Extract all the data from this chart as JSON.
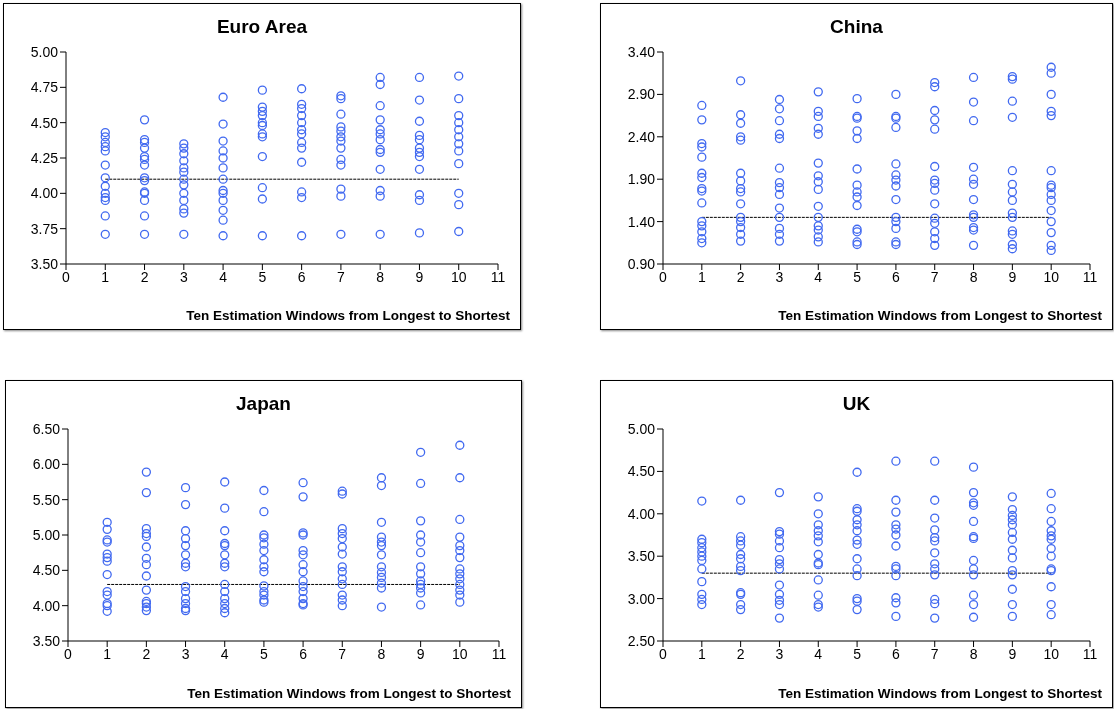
{
  "chart_data": [
    {
      "type": "scatter",
      "title": "Euro Area",
      "xlabel": "Ten Estimation Windows from Longest to Shortest",
      "xlim": [
        0,
        11
      ],
      "xticks": [
        0,
        1,
        2,
        3,
        4,
        5,
        6,
        7,
        8,
        9,
        10,
        11
      ],
      "ylim": [
        3.5,
        5
      ],
      "yticks": [
        {
          "value": 3.5,
          "label": "3.50"
        },
        {
          "value": 3.75,
          "label": "3.75"
        },
        {
          "value": 4,
          "label": "4.00"
        },
        {
          "value": 4.25,
          "label": "4.25"
        },
        {
          "value": 4.5,
          "label": "4.50"
        },
        {
          "value": 4.75,
          "label": "4.75"
        },
        {
          "value": 5,
          "label": "5.00"
        }
      ],
      "grid": false,
      "legend": false,
      "marker": "circle",
      "series": [
        {
          "color": "#4169f0",
          "x": [
            1,
            1,
            1,
            1,
            1,
            1,
            1,
            1,
            1,
            1,
            1,
            1,
            1
          ],
          "values": [
            4.43,
            4.4,
            4.36,
            4.33,
            4.3,
            4.2,
            4.11,
            4.05,
            4.0,
            3.97,
            3.95,
            3.84,
            3.71
          ]
        },
        {
          "color": "#4169f0",
          "x": [
            2,
            2,
            2,
            2,
            2,
            2,
            2,
            2,
            2,
            2,
            2,
            2,
            2,
            2
          ],
          "values": [
            4.52,
            4.38,
            4.36,
            4.32,
            4.26,
            4.24,
            4.2,
            4.11,
            4.09,
            4.01,
            4.0,
            3.95,
            3.84,
            3.71
          ]
        },
        {
          "color": "#4169f0",
          "x": [
            3,
            3,
            3,
            3,
            3,
            3,
            3,
            3,
            3,
            3,
            3,
            3,
            3
          ],
          "values": [
            4.35,
            4.32,
            4.28,
            4.23,
            4.18,
            4.15,
            4.1,
            4.06,
            4.0,
            3.95,
            3.89,
            3.86,
            3.71
          ]
        },
        {
          "color": "#4169f0",
          "x": [
            4,
            4,
            4,
            4,
            4,
            4,
            4,
            4,
            4,
            4,
            4,
            4,
            4
          ],
          "values": [
            4.68,
            4.49,
            4.37,
            4.3,
            4.25,
            4.18,
            4.1,
            4.02,
            4.0,
            3.95,
            3.88,
            3.81,
            3.7
          ]
        },
        {
          "color": "#4169f0",
          "x": [
            5,
            5,
            5,
            5,
            5,
            5,
            5,
            5,
            5,
            5,
            5,
            5
          ],
          "values": [
            4.73,
            4.61,
            4.58,
            4.55,
            4.5,
            4.48,
            4.42,
            4.4,
            4.26,
            4.04,
            3.96,
            3.7
          ]
        },
        {
          "color": "#4169f0",
          "x": [
            6,
            6,
            6,
            6,
            6,
            6,
            6,
            6,
            6,
            6,
            6,
            6,
            6
          ],
          "values": [
            4.74,
            4.63,
            4.6,
            4.55,
            4.5,
            4.45,
            4.42,
            4.36,
            4.32,
            4.22,
            4.01,
            3.97,
            3.7
          ]
        },
        {
          "color": "#4169f0",
          "x": [
            7,
            7,
            7,
            7,
            7,
            7,
            7,
            7,
            7,
            7,
            7,
            7,
            7
          ],
          "values": [
            4.69,
            4.67,
            4.56,
            4.47,
            4.44,
            4.4,
            4.37,
            4.32,
            4.24,
            4.2,
            4.03,
            3.98,
            3.71
          ]
        },
        {
          "color": "#4169f0",
          "x": [
            8,
            8,
            8,
            8,
            8,
            8,
            8,
            8,
            8,
            8,
            8,
            8,
            8
          ],
          "values": [
            4.82,
            4.77,
            4.62,
            4.52,
            4.45,
            4.42,
            4.38,
            4.31,
            4.29,
            4.17,
            4.02,
            3.98,
            3.71
          ]
        },
        {
          "color": "#4169f0",
          "x": [
            9,
            9,
            9,
            9,
            9,
            9,
            9,
            9,
            9,
            9,
            9,
            9
          ],
          "values": [
            4.82,
            4.66,
            4.51,
            4.41,
            4.38,
            4.32,
            4.29,
            4.26,
            4.17,
            3.99,
            3.95,
            3.72
          ]
        },
        {
          "color": "#4169f0",
          "x": [
            10,
            10,
            10,
            10,
            10,
            10,
            10,
            10,
            10,
            10,
            10,
            10
          ],
          "values": [
            4.83,
            4.67,
            4.55,
            4.5,
            4.45,
            4.4,
            4.35,
            4.3,
            4.21,
            4.0,
            3.92,
            3.73
          ]
        },
        {
          "type": "line",
          "color": "#000000",
          "line_style": "dashed",
          "marker": "none",
          "x": [
            1,
            10
          ],
          "values": [
            4.1,
            4.1
          ]
        }
      ]
    },
    {
      "type": "scatter",
      "title": "China",
      "xlabel": "Ten Estimation Windows from Longest to Shortest",
      "xlim": [
        0,
        11
      ],
      "xticks": [
        0,
        1,
        2,
        3,
        4,
        5,
        6,
        7,
        8,
        9,
        10,
        11
      ],
      "ylim": [
        0.9,
        3.4
      ],
      "yticks": [
        {
          "value": 0.9,
          "label": "0.90"
        },
        {
          "value": 1.4,
          "label": "1.40"
        },
        {
          "value": 1.9,
          "label": "1.90"
        },
        {
          "value": 2.4,
          "label": "2.40"
        },
        {
          "value": 2.9,
          "label": "2.90"
        },
        {
          "value": 3.4,
          "label": "3.40"
        }
      ],
      "grid": false,
      "legend": false,
      "marker": "circle",
      "series": [
        {
          "color": "#4169f0",
          "x": [
            1,
            1,
            1,
            1,
            1,
            1,
            1,
            1,
            1,
            1,
            1,
            1,
            1,
            1,
            1
          ],
          "values": [
            2.77,
            2.6,
            2.32,
            2.28,
            2.16,
            1.97,
            1.92,
            1.79,
            1.76,
            1.62,
            1.4,
            1.35,
            1.28,
            1.2,
            1.15
          ]
        },
        {
          "color": "#4169f0",
          "x": [
            2,
            2,
            2,
            2,
            2,
            2,
            2,
            2,
            2,
            2,
            2,
            2,
            2,
            2,
            2
          ],
          "values": [
            3.06,
            2.66,
            2.56,
            2.4,
            2.36,
            1.97,
            1.88,
            1.79,
            1.75,
            1.61,
            1.45,
            1.4,
            1.33,
            1.25,
            1.17
          ]
        },
        {
          "color": "#4169f0",
          "x": [
            3,
            3,
            3,
            3,
            3,
            3,
            3,
            3,
            3,
            3,
            3,
            3,
            3,
            3
          ],
          "values": [
            2.84,
            2.73,
            2.59,
            2.43,
            2.38,
            2.03,
            1.86,
            1.8,
            1.72,
            1.56,
            1.45,
            1.32,
            1.25,
            1.17
          ]
        },
        {
          "color": "#4169f0",
          "x": [
            4,
            4,
            4,
            4,
            4,
            4,
            4,
            4,
            4,
            4,
            4,
            4,
            4,
            4,
            4
          ],
          "values": [
            2.93,
            2.7,
            2.64,
            2.5,
            2.43,
            2.09,
            1.94,
            1.87,
            1.78,
            1.58,
            1.45,
            1.35,
            1.3,
            1.22,
            1.16
          ]
        },
        {
          "color": "#4169f0",
          "x": [
            5,
            5,
            5,
            5,
            5,
            5,
            5,
            5,
            5,
            5,
            5,
            5,
            5,
            5
          ],
          "values": [
            2.85,
            2.64,
            2.62,
            2.47,
            2.38,
            2.02,
            1.83,
            1.75,
            1.69,
            1.59,
            1.31,
            1.28,
            1.16,
            1.13
          ]
        },
        {
          "color": "#4169f0",
          "x": [
            6,
            6,
            6,
            6,
            6,
            6,
            6,
            6,
            6,
            6,
            6,
            6,
            6,
            6
          ],
          "values": [
            2.9,
            2.64,
            2.62,
            2.51,
            2.08,
            1.95,
            1.89,
            1.82,
            1.66,
            1.45,
            1.4,
            1.32,
            1.16,
            1.13
          ]
        },
        {
          "color": "#4169f0",
          "x": [
            7,
            7,
            7,
            7,
            7,
            7,
            7,
            7,
            7,
            7,
            7,
            7,
            7,
            7,
            7
          ],
          "values": [
            3.04,
            2.99,
            2.71,
            2.6,
            2.49,
            2.05,
            1.89,
            1.85,
            1.77,
            1.61,
            1.44,
            1.38,
            1.28,
            1.2,
            1.12
          ]
        },
        {
          "color": "#4169f0",
          "x": [
            8,
            8,
            8,
            8,
            8,
            8,
            8,
            8,
            8,
            8,
            8,
            8
          ],
          "values": [
            3.1,
            2.81,
            2.59,
            2.04,
            1.9,
            1.84,
            1.66,
            1.48,
            1.45,
            1.33,
            1.3,
            1.12
          ]
        },
        {
          "color": "#4169f0",
          "x": [
            9,
            9,
            9,
            9,
            9,
            9,
            9,
            9,
            9,
            9,
            9,
            9,
            9,
            9
          ],
          "values": [
            3.11,
            3.08,
            2.82,
            2.63,
            2.0,
            1.84,
            1.75,
            1.65,
            1.5,
            1.45,
            1.29,
            1.25,
            1.13,
            1.08
          ]
        },
        {
          "color": "#4169f0",
          "x": [
            10,
            10,
            10,
            10,
            10,
            10,
            10,
            10,
            10,
            10,
            10,
            10,
            10,
            10,
            10
          ],
          "values": [
            3.22,
            3.15,
            2.9,
            2.7,
            2.65,
            2.0,
            1.83,
            1.8,
            1.72,
            1.65,
            1.53,
            1.4,
            1.27,
            1.12,
            1.06
          ]
        },
        {
          "type": "line",
          "color": "#000000",
          "line_style": "dashed",
          "marker": "none",
          "x": [
            1,
            10
          ],
          "values": [
            1.45,
            1.45
          ]
        }
      ]
    },
    {
      "type": "scatter",
      "title": "Japan",
      "xlabel": "Ten Estimation Windows from Longest to Shortest",
      "xlim": [
        0,
        11
      ],
      "xticks": [
        0,
        1,
        2,
        3,
        4,
        5,
        6,
        7,
        8,
        9,
        10,
        11
      ],
      "ylim": [
        3.5,
        6.5
      ],
      "yticks": [
        {
          "value": 3.5,
          "label": "3.50"
        },
        {
          "value": 4,
          "label": "4.00"
        },
        {
          "value": 4.5,
          "label": "4.50"
        },
        {
          "value": 5,
          "label": "5.00"
        },
        {
          "value": 5.5,
          "label": "5.50"
        },
        {
          "value": 6,
          "label": "6.00"
        },
        {
          "value": 6.5,
          "label": "6.50"
        }
      ],
      "grid": false,
      "legend": false,
      "marker": "circle",
      "series": [
        {
          "color": "#4169f0",
          "x": [
            1,
            1,
            1,
            1,
            1,
            1,
            1,
            1,
            1,
            1,
            1,
            1,
            1
          ],
          "values": [
            5.18,
            5.08,
            4.93,
            4.9,
            4.73,
            4.68,
            4.63,
            4.44,
            4.2,
            4.15,
            4.03,
            4.0,
            3.92
          ]
        },
        {
          "color": "#4169f0",
          "x": [
            2,
            2,
            2,
            2,
            2,
            2,
            2,
            2,
            2,
            2,
            2,
            2,
            2,
            2
          ],
          "values": [
            5.89,
            5.6,
            5.09,
            5.02,
            4.98,
            4.83,
            4.67,
            4.58,
            4.42,
            4.22,
            4.06,
            4.03,
            3.98,
            3.93
          ]
        },
        {
          "color": "#4169f0",
          "x": [
            3,
            3,
            3,
            3,
            3,
            3,
            3,
            3,
            3,
            3,
            3,
            3,
            3,
            3
          ],
          "values": [
            5.67,
            5.43,
            5.06,
            4.95,
            4.85,
            4.72,
            4.6,
            4.55,
            4.27,
            4.2,
            4.1,
            4.03,
            3.96,
            3.93
          ]
        },
        {
          "color": "#4169f0",
          "x": [
            4,
            4,
            4,
            4,
            4,
            4,
            4,
            4,
            4,
            4,
            4,
            4,
            4,
            4
          ],
          "values": [
            5.75,
            5.38,
            5.06,
            4.88,
            4.85,
            4.72,
            4.6,
            4.55,
            4.3,
            4.2,
            4.1,
            4.03,
            3.96,
            3.9
          ]
        },
        {
          "color": "#4169f0",
          "x": [
            5,
            5,
            5,
            5,
            5,
            5,
            5,
            5,
            5,
            5,
            5,
            5,
            5,
            5
          ],
          "values": [
            5.63,
            5.33,
            5.0,
            4.96,
            4.87,
            4.78,
            4.65,
            4.55,
            4.48,
            4.28,
            4.2,
            4.15,
            4.08,
            4.05
          ]
        },
        {
          "color": "#4169f0",
          "x": [
            6,
            6,
            6,
            6,
            6,
            6,
            6,
            6,
            6,
            6,
            6,
            6,
            6,
            6
          ],
          "values": [
            5.74,
            5.54,
            5.03,
            5.0,
            4.78,
            4.72,
            4.58,
            4.48,
            4.35,
            4.27,
            4.2,
            4.1,
            4.03,
            4.01
          ]
        },
        {
          "color": "#4169f0",
          "x": [
            7,
            7,
            7,
            7,
            7,
            7,
            7,
            7,
            7,
            7,
            7,
            7,
            7,
            7
          ],
          "values": [
            5.62,
            5.58,
            5.09,
            5.02,
            4.95,
            4.83,
            4.73,
            4.55,
            4.48,
            4.38,
            4.3,
            4.15,
            4.08,
            4.0
          ]
        },
        {
          "color": "#4169f0",
          "x": [
            8,
            8,
            8,
            8,
            8,
            8,
            8,
            8,
            8,
            8,
            8,
            8,
            8
          ],
          "values": [
            5.81,
            5.7,
            5.18,
            4.97,
            4.9,
            4.85,
            4.72,
            4.55,
            4.47,
            4.4,
            4.32,
            4.25,
            3.98
          ]
        },
        {
          "color": "#4169f0",
          "x": [
            9,
            9,
            9,
            9,
            9,
            9,
            9,
            9,
            9,
            9,
            9,
            9,
            9
          ],
          "values": [
            6.17,
            5.73,
            5.2,
            5.0,
            4.9,
            4.75,
            4.55,
            4.45,
            4.35,
            4.3,
            4.25,
            4.18,
            4.01
          ]
        },
        {
          "color": "#4169f0",
          "x": [
            10,
            10,
            10,
            10,
            10,
            10,
            10,
            10,
            10,
            10,
            10,
            10,
            10,
            10
          ],
          "values": [
            6.27,
            5.81,
            5.22,
            4.97,
            4.85,
            4.78,
            4.68,
            4.52,
            4.45,
            4.38,
            4.3,
            4.22,
            4.15,
            4.05
          ]
        },
        {
          "type": "line",
          "color": "#000000",
          "line_style": "dashed",
          "marker": "none",
          "x": [
            1,
            10
          ],
          "values": [
            4.3,
            4.3
          ]
        }
      ]
    },
    {
      "type": "scatter",
      "title": "UK",
      "xlabel": "Ten Estimation Windows from Longest to Shortest",
      "xlim": [
        0,
        11
      ],
      "xticks": [
        0,
        1,
        2,
        3,
        4,
        5,
        6,
        7,
        8,
        9,
        10,
        11
      ],
      "ylim": [
        2.5,
        5
      ],
      "yticks": [
        {
          "value": 2.5,
          "label": "2.50"
        },
        {
          "value": 3,
          "label": "3.00"
        },
        {
          "value": 3.5,
          "label": "3.50"
        },
        {
          "value": 4,
          "label": "4.00"
        },
        {
          "value": 4.5,
          "label": "4.50"
        },
        {
          "value": 5,
          "label": "5.00"
        }
      ],
      "grid": false,
      "legend": false,
      "marker": "circle",
      "series": [
        {
          "color": "#4169f0",
          "x": [
            1,
            1,
            1,
            1,
            1,
            1,
            1,
            1,
            1,
            1,
            1,
            1
          ],
          "values": [
            4.15,
            3.7,
            3.66,
            3.6,
            3.55,
            3.5,
            3.45,
            3.35,
            3.2,
            3.05,
            2.99,
            2.93
          ]
        },
        {
          "color": "#4169f0",
          "x": [
            2,
            2,
            2,
            2,
            2,
            2,
            2,
            2,
            2,
            2,
            2,
            2
          ],
          "values": [
            4.16,
            3.73,
            3.68,
            3.63,
            3.52,
            3.47,
            3.38,
            3.33,
            3.07,
            3.05,
            2.93,
            2.87
          ]
        },
        {
          "color": "#4169f0",
          "x": [
            3,
            3,
            3,
            3,
            3,
            3,
            3,
            3,
            3,
            3,
            3,
            3,
            3
          ],
          "values": [
            4.25,
            3.79,
            3.76,
            3.68,
            3.6,
            3.46,
            3.41,
            3.35,
            3.16,
            3.05,
            2.98,
            2.93,
            2.77
          ]
        },
        {
          "color": "#4169f0",
          "x": [
            4,
            4,
            4,
            4,
            4,
            4,
            4,
            4,
            4,
            4,
            4,
            4,
            4
          ],
          "values": [
            4.2,
            4.0,
            3.87,
            3.8,
            3.74,
            3.67,
            3.52,
            3.42,
            3.4,
            3.22,
            3.04,
            2.93,
            2.9
          ]
        },
        {
          "color": "#4169f0",
          "x": [
            5,
            5,
            5,
            5,
            5,
            5,
            5,
            5,
            5,
            5,
            5,
            5,
            5,
            5
          ],
          "values": [
            4.49,
            4.06,
            4.03,
            3.93,
            3.87,
            3.8,
            3.69,
            3.64,
            3.47,
            3.35,
            3.27,
            3.0,
            2.97,
            2.87
          ]
        },
        {
          "color": "#4169f0",
          "x": [
            6,
            6,
            6,
            6,
            6,
            6,
            6,
            6,
            6,
            6,
            6,
            6,
            6
          ],
          "values": [
            4.62,
            4.16,
            4.02,
            3.87,
            3.82,
            3.75,
            3.62,
            3.38,
            3.35,
            3.27,
            3.01,
            2.95,
            2.79
          ]
        },
        {
          "color": "#4169f0",
          "x": [
            7,
            7,
            7,
            7,
            7,
            7,
            7,
            7,
            7,
            7,
            7,
            7,
            7
          ],
          "values": [
            4.62,
            4.16,
            3.95,
            3.81,
            3.72,
            3.68,
            3.54,
            3.41,
            3.35,
            3.28,
            2.99,
            2.94,
            2.77
          ]
        },
        {
          "color": "#4169f0",
          "x": [
            8,
            8,
            8,
            8,
            8,
            8,
            8,
            8,
            8,
            8,
            8,
            8,
            8
          ],
          "values": [
            4.55,
            4.25,
            4.13,
            4.1,
            3.91,
            3.73,
            3.71,
            3.45,
            3.35,
            3.28,
            3.04,
            2.93,
            2.78
          ]
        },
        {
          "color": "#4169f0",
          "x": [
            9,
            9,
            9,
            9,
            9,
            9,
            9,
            9,
            9,
            9,
            9,
            9,
            9,
            9
          ],
          "values": [
            4.2,
            4.05,
            3.98,
            3.93,
            3.87,
            3.78,
            3.7,
            3.57,
            3.48,
            3.33,
            3.28,
            3.11,
            2.93,
            2.79
          ]
        },
        {
          "color": "#4169f0",
          "x": [
            10,
            10,
            10,
            10,
            10,
            10,
            10,
            10,
            10,
            10,
            10,
            10,
            10
          ],
          "values": [
            4.24,
            4.06,
            3.91,
            3.8,
            3.74,
            3.7,
            3.59,
            3.5,
            3.35,
            3.33,
            3.14,
            2.93,
            2.81
          ]
        },
        {
          "type": "line",
          "color": "#000000",
          "line_style": "dashed",
          "marker": "none",
          "x": [
            1,
            10
          ],
          "values": [
            3.3,
            3.3
          ]
        }
      ]
    }
  ]
}
